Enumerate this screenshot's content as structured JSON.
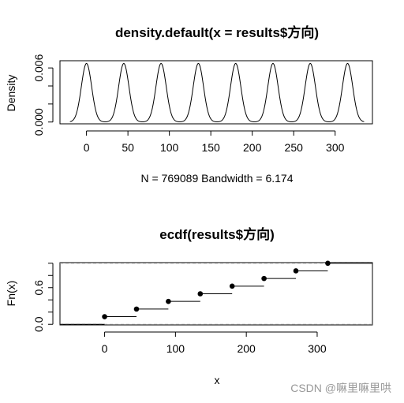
{
  "watermark": "CSDN @嘛里嘛里哄",
  "chart_data": [
    {
      "type": "line",
      "title": "density.default(x = results$方向)",
      "xlabel": "N = 769089   Bandwidth = 6.174",
      "ylabel": "Density",
      "xlim": [
        -32,
        345
      ],
      "ylim": [
        -0.0002,
        0.0068
      ],
      "x_ticks": [
        0,
        50,
        100,
        150,
        200,
        250,
        300
      ],
      "x_tick_labels": [
        "0",
        "50",
        "100",
        "150",
        "200",
        "250",
        "300"
      ],
      "y_ticks": [
        0.0,
        0.002,
        0.004,
        0.006
      ],
      "y_tick_labels": [
        "0.000",
        "0.006"
      ],
      "peaks": [
        0,
        45,
        90,
        135,
        180,
        225,
        270,
        315
      ],
      "peak_density": 0.0065,
      "bandwidth": 6.174,
      "series": [
        {
          "values": []
        }
      ]
    },
    {
      "type": "step",
      "title": "ecdf(results$方向)",
      "xlabel": "x",
      "ylabel": "Fn(x)",
      "xlim": [
        -63,
        378
      ],
      "ylim": [
        -0.01,
        1.01
      ],
      "x_ticks": [
        0,
        100,
        200,
        300
      ],
      "x_tick_labels": [
        "0",
        "100",
        "200",
        "300"
      ],
      "y_ticks": [
        0.0,
        0.6
      ],
      "y_tick_labels": [
        "0.0",
        "0.6"
      ],
      "x": [
        0,
        45,
        90,
        135,
        180,
        225,
        270,
        315
      ],
      "y": [
        0.125,
        0.25,
        0.375,
        0.5,
        0.625,
        0.75,
        0.875,
        1.0
      ],
      "reference_lines": [
        0,
        1
      ]
    }
  ]
}
